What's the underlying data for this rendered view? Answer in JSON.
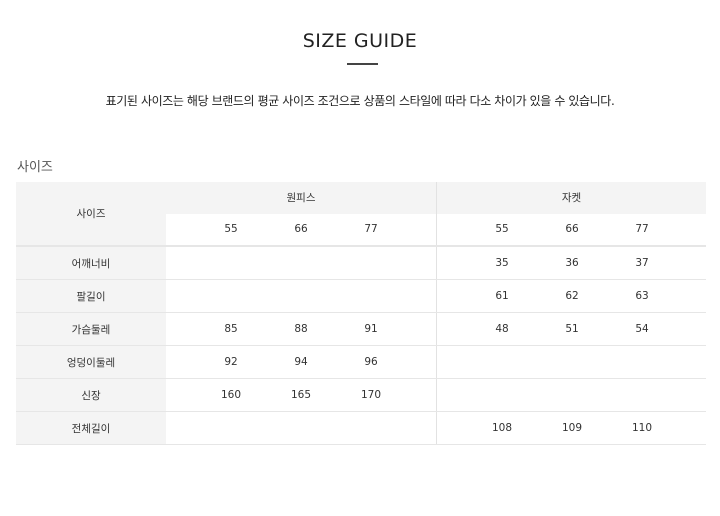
{
  "title": "SIZE GUIDE",
  "description": "표기된 사이즈는 해당 브랜드의 평균 사이즈 조건으로 상품의 스타일에 따라 다소 차이가 있을 수 있습니다.",
  "section_label": "사이즈",
  "table": {
    "corner": "사이즈",
    "groups": [
      {
        "name": "원피스",
        "sizes": [
          "55",
          "66",
          "77"
        ]
      },
      {
        "name": "자켓",
        "sizes": [
          "55",
          "66",
          "77"
        ]
      }
    ],
    "rows": [
      {
        "label": "어깨너비",
        "g0": [
          "",
          "",
          ""
        ],
        "g1": [
          "35",
          "36",
          "37"
        ]
      },
      {
        "label": "팔길이",
        "g0": [
          "",
          "",
          ""
        ],
        "g1": [
          "61",
          "62",
          "63"
        ]
      },
      {
        "label": "가슴둘레",
        "g0": [
          "85",
          "88",
          "91"
        ],
        "g1": [
          "48",
          "51",
          "54"
        ]
      },
      {
        "label": "엉덩이둘레",
        "g0": [
          "92",
          "94",
          "96"
        ],
        "g1": [
          "",
          "",
          ""
        ]
      },
      {
        "label": "신장",
        "g0": [
          "160",
          "165",
          "170"
        ],
        "g1": [
          "",
          "",
          ""
        ]
      },
      {
        "label": "전체길이",
        "g0": [
          "",
          "",
          ""
        ],
        "g1": [
          "108",
          "109",
          "110"
        ]
      }
    ]
  }
}
